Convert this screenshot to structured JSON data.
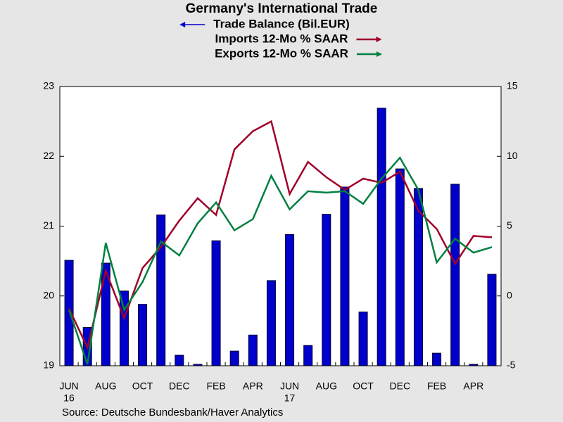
{
  "chart_data": {
    "type": "bar_line",
    "title": "Germany's International Trade",
    "source": "Source:  Deutsche Bundesbank/Haver Analytics",
    "categories": [
      "JUN",
      null,
      "AUG",
      null,
      "OCT",
      null,
      "DEC",
      null,
      "FEB",
      null,
      "APR",
      null,
      "JUN",
      null,
      "AUG",
      null,
      "OCT",
      null,
      "DEC",
      null,
      "FEB",
      null,
      "APR",
      null
    ],
    "year_labels": [
      {
        "at": 0,
        "label": "16"
      },
      {
        "at": 12,
        "label": "17"
      }
    ],
    "series": [
      {
        "name": "Trade Balance (Bil.EUR)",
        "color": "#0000cc",
        "kind": "bar",
        "axis": "y",
        "values": [
          20.51,
          19.55,
          20.47,
          20.07,
          19.88,
          21.16,
          19.15,
          19.02,
          20.79,
          19.21,
          19.44,
          20.22,
          20.88,
          19.29,
          21.17,
          21.56,
          19.77,
          22.69,
          21.82,
          21.54,
          19.18,
          21.6,
          19.02,
          20.31
        ]
      },
      {
        "name": "Imports 12-Mo % SAAR",
        "color": "#a0002a",
        "kind": "line",
        "axis": "y2",
        "values": [
          -0.9,
          -3.7,
          1.8,
          -1.6,
          2.0,
          3.5,
          5.4,
          7.0,
          5.8,
          10.5,
          11.8,
          12.5,
          7.3,
          9.6,
          8.5,
          7.6,
          8.4,
          8.1,
          8.9,
          6.1,
          4.8,
          2.3,
          4.3,
          4.2
        ]
      },
      {
        "name": "Exports 12-Mo % SAAR",
        "color": "#008040",
        "kind": "line",
        "axis": "y2",
        "values": [
          -1.0,
          -4.9,
          3.8,
          -1.0,
          1.0,
          3.9,
          2.9,
          5.2,
          6.7,
          4.7,
          5.5,
          8.6,
          6.2,
          7.5,
          7.4,
          7.5,
          6.6,
          8.4,
          9.9,
          7.6,
          2.4,
          4.1,
          3.1,
          3.5
        ]
      }
    ],
    "ylim": [
      19,
      23
    ],
    "yticks": [
      19,
      20,
      21,
      22,
      23
    ],
    "y2lim": [
      -5,
      15
    ],
    "y2ticks": [
      -5,
      0,
      5,
      10,
      15
    ]
  }
}
